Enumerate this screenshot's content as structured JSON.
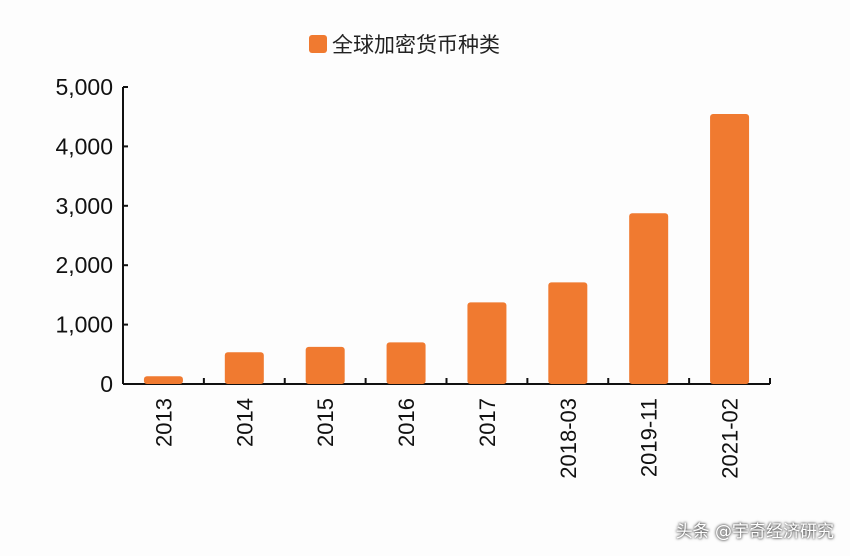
{
  "chart_data": {
    "type": "bar",
    "title": "",
    "legend": [
      "全球加密货币种类"
    ],
    "legend_position": "top-center",
    "categories": [
      "2013",
      "2014",
      "2015",
      "2016",
      "2017",
      "2018-03",
      "2019-11",
      "2021-02"
    ],
    "series": [
      {
        "name": "全球加密货币种类",
        "values": [
          130,
          535,
          625,
          700,
          1375,
          1710,
          2875,
          4545
        ],
        "color": "#f07a30"
      }
    ],
    "yticks": [
      "0",
      "1,000",
      "2,000",
      "3,000",
      "4,000",
      "5,000"
    ],
    "ylim": [
      0,
      5000
    ],
    "xlabel": "",
    "ylabel": "",
    "grid": false
  },
  "watermark": "头条 @宇奇经济研究"
}
